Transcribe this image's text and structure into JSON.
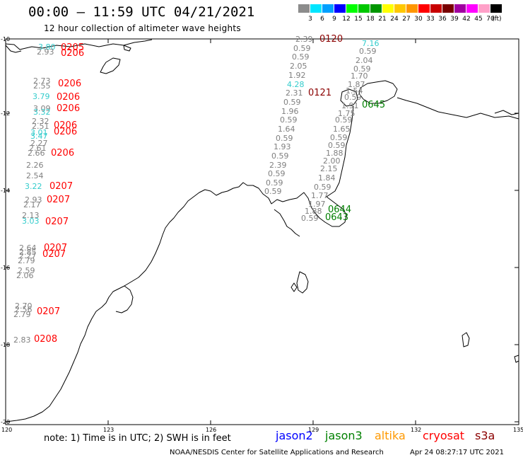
{
  "header": {
    "title": "00:00 – 11:59 UTC 04/21/2021",
    "subtitle": "12 hour collection of altimeter wave heights"
  },
  "legend": {
    "values": [
      "3",
      "6",
      "9",
      "12",
      "15",
      "18",
      "21",
      "24",
      "27",
      "30",
      "33",
      "36",
      "39",
      "42",
      "45",
      "70"
    ],
    "unit": "(ft)",
    "colors": [
      "#8c8c8c",
      "#00e5ff",
      "#00a0ff",
      "#0000ff",
      "#00ff00",
      "#00c800",
      "#009600",
      "#ffff00",
      "#ffc800",
      "#ff9600",
      "#ff0000",
      "#c80000",
      "#780000",
      "#a000a0",
      "#ff00ff",
      "#ffa0c8",
      "#000000"
    ]
  },
  "axes": {
    "lon_labels": [
      "120",
      "123",
      "126",
      "129",
      "132",
      "135"
    ],
    "lat_labels": [
      "-10",
      "-12",
      "-14",
      "-16",
      "-18",
      "-20"
    ]
  },
  "footer": {
    "note": "note:  1) Time is in UTC;  2) SWH is in feet",
    "missions": [
      {
        "name": "jason2",
        "color": "#0000ff"
      },
      {
        "name": "jason3",
        "color": "#008000"
      },
      {
        "name": "altika",
        "color": "#ff9900"
      },
      {
        "name": "cryosat",
        "color": "#ff0000"
      },
      {
        "name": "s3a",
        "color": "#8b0000"
      }
    ],
    "credit": "NOAA/NESDIS Center for Satellite Applications and Research",
    "timestamp": "Apr 24 08:27:17 UTC 2021"
  },
  "wave_labels": {
    "heights": [
      {
        "text": "3.80",
        "color": "#33cccc"
      },
      {
        "text": "2.93",
        "color": "#808080"
      },
      {
        "text": "2.73",
        "color": "#808080"
      },
      {
        "text": "2.55",
        "color": "#808080"
      },
      {
        "text": "3.79",
        "color": "#33cccc"
      },
      {
        "text": "3.09",
        "color": "#808080"
      },
      {
        "text": "3.32",
        "color": "#33cccc"
      },
      {
        "text": "2.32",
        "color": "#808080"
      },
      {
        "text": "2.51",
        "color": "#808080"
      },
      {
        "text": "3.01",
        "color": "#33cccc"
      },
      {
        "text": "3.47",
        "color": "#33cccc"
      },
      {
        "text": "2.27",
        "color": "#808080"
      },
      {
        "text": "2.61",
        "color": "#808080"
      },
      {
        "text": "2.66",
        "color": "#808080"
      },
      {
        "text": "2.26",
        "color": "#808080"
      },
      {
        "text": "2.54",
        "color": "#808080"
      },
      {
        "text": "3.22",
        "color": "#33cccc"
      },
      {
        "text": "2.93",
        "color": "#808080"
      },
      {
        "text": "2.17",
        "color": "#808080"
      },
      {
        "text": "2.13",
        "color": "#808080"
      },
      {
        "text": "3.03",
        "color": "#33cccc"
      },
      {
        "text": "2.64",
        "color": "#808080"
      },
      {
        "text": "2.85",
        "color": "#808080"
      },
      {
        "text": "2.27",
        "color": "#808080"
      },
      {
        "text": "2.79",
        "color": "#808080"
      },
      {
        "text": "2.59",
        "color": "#808080"
      },
      {
        "text": "2.06",
        "color": "#808080"
      },
      {
        "text": "2.70",
        "color": "#808080"
      },
      {
        "text": "2.56",
        "color": "#808080"
      },
      {
        "text": "2.79",
        "color": "#808080"
      },
      {
        "text": "2.83",
        "color": "#808080"
      },
      {
        "text": "2.39",
        "color": "#808080"
      },
      {
        "text": "0.59",
        "color": "#808080"
      },
      {
        "text": "0.59",
        "color": "#808080"
      },
      {
        "text": "2.05",
        "color": "#808080"
      },
      {
        "text": "1.92",
        "color": "#808080"
      },
      {
        "text": "4.28",
        "color": "#33cccc"
      },
      {
        "text": "2.31",
        "color": "#808080"
      },
      {
        "text": "0.59",
        "color": "#808080"
      },
      {
        "text": "1.96",
        "color": "#808080"
      },
      {
        "text": "0.59",
        "color": "#808080"
      },
      {
        "text": "1.64",
        "color": "#808080"
      },
      {
        "text": "0.59",
        "color": "#808080"
      },
      {
        "text": "1.93",
        "color": "#808080"
      },
      {
        "text": "0.59",
        "color": "#808080"
      },
      {
        "text": "2.39",
        "color": "#808080"
      },
      {
        "text": "0.59",
        "color": "#808080"
      },
      {
        "text": "0.59",
        "color": "#808080"
      },
      {
        "text": "0.59",
        "color": "#808080"
      },
      {
        "text": "7.16",
        "color": "#33cccc"
      },
      {
        "text": "0.59",
        "color": "#808080"
      },
      {
        "text": "2.04",
        "color": "#808080"
      },
      {
        "text": "0.59",
        "color": "#808080"
      },
      {
        "text": "1.70",
        "color": "#808080"
      },
      {
        "text": "1.87",
        "color": "#808080"
      },
      {
        "text": "1.54",
        "color": "#808080"
      },
      {
        "text": "0.59",
        "color": "#808080"
      },
      {
        "text": "1.91",
        "color": "#808080"
      },
      {
        "text": "1.75",
        "color": "#808080"
      },
      {
        "text": "0.59",
        "color": "#808080"
      },
      {
        "text": "1.65",
        "color": "#808080"
      },
      {
        "text": "0.59",
        "color": "#808080"
      },
      {
        "text": "0.59",
        "color": "#808080"
      },
      {
        "text": "1.88",
        "color": "#808080"
      },
      {
        "text": "2.00",
        "color": "#808080"
      },
      {
        "text": "2.15",
        "color": "#808080"
      },
      {
        "text": "1.84",
        "color": "#808080"
      },
      {
        "text": "0.59",
        "color": "#808080"
      },
      {
        "text": "1.77",
        "color": "#808080"
      },
      {
        "text": "1.97",
        "color": "#808080"
      },
      {
        "text": "1.88",
        "color": "#808080"
      },
      {
        "text": "0.59",
        "color": "#808080"
      },
      {
        "text": "0.59",
        "color": "#808080"
      }
    ],
    "times": [
      {
        "text": "0205",
        "color": "#ff0000"
      },
      {
        "text": "0206",
        "color": "#ff0000"
      },
      {
        "text": "0206",
        "color": "#ff0000"
      },
      {
        "text": "0206",
        "color": "#ff0000"
      },
      {
        "text": "0206",
        "color": "#ff0000"
      },
      {
        "text": "0206",
        "color": "#ff0000"
      },
      {
        "text": "0206",
        "color": "#ff0000"
      },
      {
        "text": "0206",
        "color": "#ff0000"
      },
      {
        "text": "0207",
        "color": "#ff0000"
      },
      {
        "text": "0207",
        "color": "#ff0000"
      },
      {
        "text": "0207",
        "color": "#ff0000"
      },
      {
        "text": "0207",
        "color": "#ff0000"
      },
      {
        "text": "0207",
        "color": "#ff0000"
      },
      {
        "text": "0207",
        "color": "#ff0000"
      },
      {
        "text": "0208",
        "color": "#ff0000"
      },
      {
        "text": "0120",
        "color": "#8b0000"
      },
      {
        "text": "0121",
        "color": "#8b0000"
      },
      {
        "text": "0645",
        "color": "#008000"
      },
      {
        "text": "0644",
        "color": "#008000"
      },
      {
        "text": "0643",
        "color": "#008000"
      }
    ]
  }
}
